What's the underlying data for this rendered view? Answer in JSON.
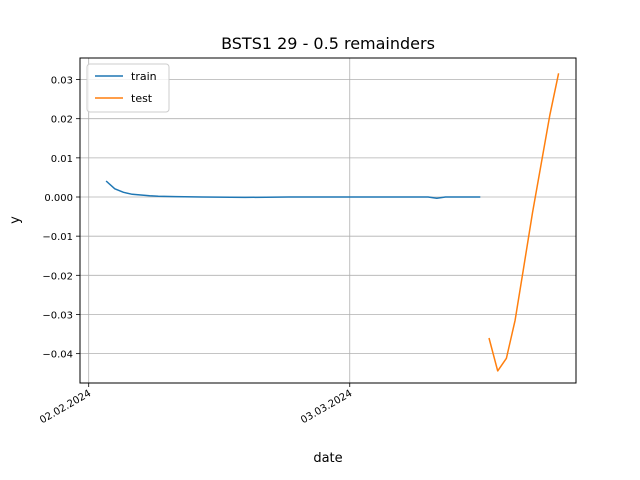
{
  "chart_data": {
    "type": "line",
    "title": "BSTS1 29 - 0.5 remainders",
    "xlabel": "date",
    "ylabel": "y",
    "x_tick_labels": [
      "02.02.2024",
      "03.03.2024"
    ],
    "x_ticks": [
      "2024-02-02",
      "2024-03-03"
    ],
    "xlim": [
      "2024-02-01",
      "2024-03-29"
    ],
    "ylim": [
      -0.0475,
      0.0355
    ],
    "y_ticks": [
      0.03,
      0.02,
      0.01,
      0.0,
      -0.01,
      -0.02,
      -0.03,
      -0.04
    ],
    "y_tick_labels": [
      "0.03",
      "0.02",
      "0.01",
      "0.000",
      "−0.01",
      "−0.02",
      "−0.03",
      "−0.04"
    ],
    "grid": true,
    "legend_position": "top-left",
    "series": [
      {
        "name": "train",
        "color": "#1f77b4",
        "points": [
          {
            "x": "2024-02-04",
            "y": 0.0041
          },
          {
            "x": "2024-02-05",
            "y": 0.0021
          },
          {
            "x": "2024-02-06",
            "y": 0.0012
          },
          {
            "x": "2024-02-07",
            "y": 0.0007
          },
          {
            "x": "2024-02-08",
            "y": 0.0005
          },
          {
            "x": "2024-02-09",
            "y": 0.0003
          },
          {
            "x": "2024-02-10",
            "y": 0.0002
          },
          {
            "x": "2024-02-12",
            "y": 0.0001
          },
          {
            "x": "2024-02-15",
            "y": 0.0
          },
          {
            "x": "2024-02-20",
            "y": -0.0001
          },
          {
            "x": "2024-02-25",
            "y": 0.0
          },
          {
            "x": "2024-03-01",
            "y": 0.0
          },
          {
            "x": "2024-03-05",
            "y": 0.0
          },
          {
            "x": "2024-03-10",
            "y": 0.0
          },
          {
            "x": "2024-03-12",
            "y": 0.0
          },
          {
            "x": "2024-03-13",
            "y": -0.0003
          },
          {
            "x": "2024-03-14",
            "y": 0.0
          },
          {
            "x": "2024-03-18",
            "y": 0.0
          }
        ]
      },
      {
        "name": "test",
        "color": "#ff7f0e",
        "points": [
          {
            "x": "2024-03-19",
            "y": -0.036
          },
          {
            "x": "2024-03-20",
            "y": -0.0444
          },
          {
            "x": "2024-03-21",
            "y": -0.0412
          },
          {
            "x": "2024-03-22",
            "y": -0.0315
          },
          {
            "x": "2024-03-23",
            "y": -0.0178
          },
          {
            "x": "2024-03-24",
            "y": -0.004
          },
          {
            "x": "2024-03-25",
            "y": 0.0085
          },
          {
            "x": "2024-03-26",
            "y": 0.021
          },
          {
            "x": "2024-03-27",
            "y": 0.0316
          }
        ]
      }
    ]
  }
}
